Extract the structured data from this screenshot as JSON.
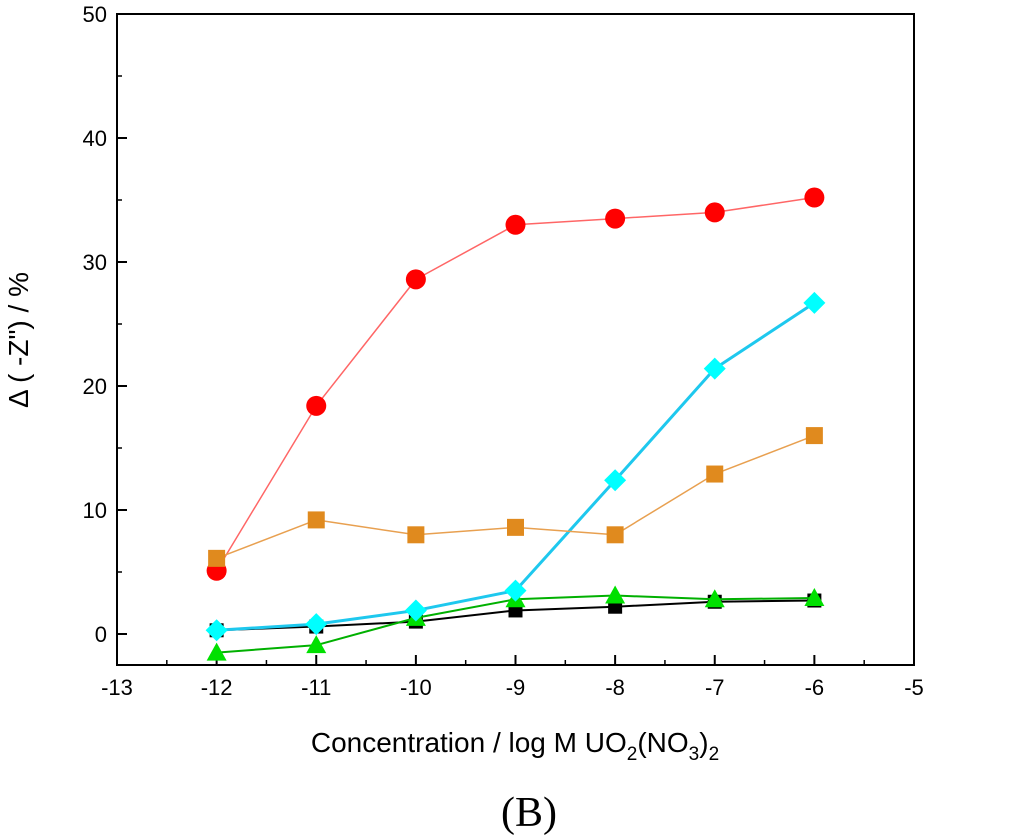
{
  "chart_data": {
    "type": "line",
    "xlabel": {
      "main": "Concentration / log M UO",
      "sub1": "2",
      "mid": "(NO",
      "sub2": "3",
      "close": ")",
      "sub3": "2"
    },
    "ylabel": "Δ ( -Z\") / %",
    "caption": "(B)",
    "xlim": [
      -13,
      -5
    ],
    "ylim": [
      -2.5,
      50
    ],
    "x_ticks": [
      -13,
      -12,
      -11,
      -10,
      -9,
      -8,
      -7,
      -6,
      -5
    ],
    "y_ticks": [
      0,
      10,
      20,
      30,
      40,
      50
    ],
    "grid": false,
    "legend": "none",
    "x": [
      -12,
      -11,
      -10,
      -9,
      -8,
      -7,
      -6
    ],
    "series": [
      {
        "marker": "square",
        "color": "#000000",
        "line_color": "#000000",
        "marker_size": 14,
        "line_width": 2,
        "values": [
          0.3,
          0.6,
          1.0,
          1.9,
          2.2,
          2.6,
          2.7
        ]
      },
      {
        "marker": "circle",
        "color": "#ff0000",
        "line_color": "#ff6666",
        "marker_size": 20,
        "line_width": 1.5,
        "values": [
          5.1,
          18.4,
          28.6,
          33.0,
          33.5,
          34.0,
          35.2
        ]
      },
      {
        "marker": "triangle",
        "color": "#00e000",
        "line_color": "#00b000",
        "marker_size": 20,
        "line_width": 2,
        "values": [
          -1.5,
          -0.9,
          1.3,
          2.8,
          3.1,
          2.8,
          2.9
        ]
      },
      {
        "marker": "diamond",
        "color": "#00ffff",
        "line_color": "#1ec8ee",
        "marker_size": 22,
        "line_width": 3,
        "values": [
          0.3,
          0.8,
          1.9,
          3.5,
          12.4,
          21.4,
          26.7
        ]
      },
      {
        "marker": "square",
        "color": "#e08a1e",
        "line_color": "#e8a050",
        "marker_size": 17,
        "line_width": 1.5,
        "values": [
          6.1,
          9.2,
          8.0,
          8.6,
          8.0,
          12.9,
          16.0
        ]
      }
    ]
  }
}
